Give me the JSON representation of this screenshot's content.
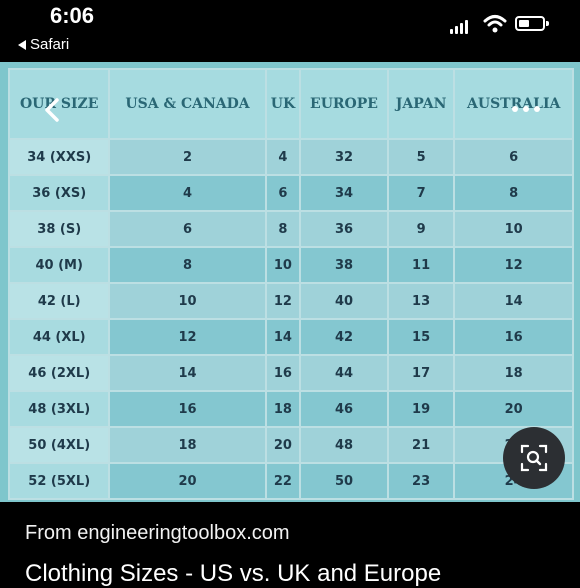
{
  "status_bar": {
    "time": "6:06",
    "back_app": "Safari"
  },
  "table": {
    "headers": [
      "OUR SIZE",
      "USA & CANADA",
      "UK",
      "EUROPE",
      "JAPAN",
      "AUSTRALIA"
    ],
    "rows": [
      [
        "34 (XXS)",
        "2",
        "4",
        "32",
        "5",
        "6"
      ],
      [
        "36 (XS)",
        "4",
        "6",
        "34",
        "7",
        "8"
      ],
      [
        "38 (S)",
        "6",
        "8",
        "36",
        "9",
        "10"
      ],
      [
        "40 (M)",
        "8",
        "10",
        "38",
        "11",
        "12"
      ],
      [
        "42 (L)",
        "10",
        "12",
        "40",
        "13",
        "14"
      ],
      [
        "44 (XL)",
        "12",
        "14",
        "42",
        "15",
        "16"
      ],
      [
        "46 (2XL)",
        "14",
        "16",
        "44",
        "17",
        "18"
      ],
      [
        "48 (3XL)",
        "16",
        "18",
        "46",
        "19",
        "20"
      ],
      [
        "50 (4XL)",
        "18",
        "20",
        "48",
        "21",
        "22"
      ],
      [
        "52 (5XL)",
        "20",
        "22",
        "50",
        "23",
        "24"
      ]
    ]
  },
  "caption": {
    "prefix": "From ",
    "source": "engineeringtoolbox.com"
  },
  "result_title": "Clothing Sizes - US vs. UK and Europe",
  "icons": {
    "nav_back": "chevron-left-icon",
    "more": "more-dots-icon",
    "lens": "visual-search-icon"
  }
}
